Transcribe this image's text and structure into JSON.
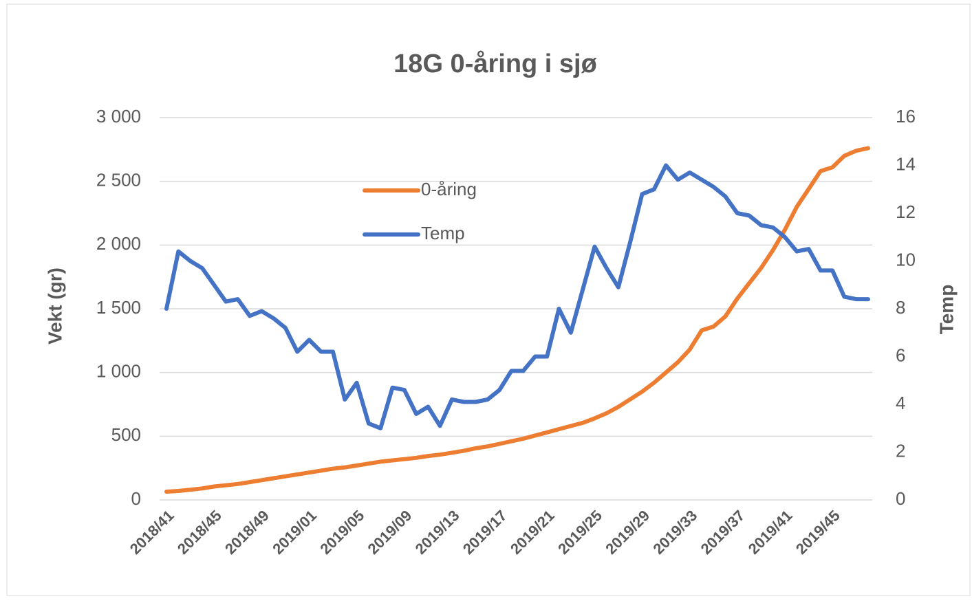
{
  "chart_data": {
    "type": "line",
    "title": "18G 0-åring i sjø",
    "y_label": "Vekt (gr)",
    "y2_label": "Temp",
    "categories": [
      "2018/41",
      null,
      null,
      null,
      "2018/45",
      null,
      null,
      null,
      "2018/49",
      null,
      null,
      null,
      "2019/01",
      null,
      null,
      null,
      "2019/05",
      null,
      null,
      null,
      "2019/09",
      null,
      null,
      null,
      "2019/13",
      null,
      null,
      null,
      "2019/17",
      null,
      null,
      null,
      "2019/21",
      null,
      null,
      null,
      "2019/25",
      null,
      null,
      null,
      "2019/29",
      null,
      null,
      null,
      "2019/33",
      null,
      null,
      null,
      "2019/37",
      null,
      null,
      null,
      "2019/41",
      null,
      null,
      null,
      "2019/45",
      null,
      null,
      null
    ],
    "series": [
      {
        "name": "0-åring",
        "color": "#ed7d31",
        "values": [
          65,
          70,
          80,
          90,
          105,
          115,
          125,
          140,
          155,
          170,
          185,
          200,
          215,
          230,
          245,
          255,
          270,
          285,
          300,
          310,
          320,
          330,
          345,
          355,
          370,
          385,
          405,
          420,
          440,
          460,
          480,
          505,
          530,
          555,
          580,
          605,
          640,
          680,
          730,
          790,
          850,
          920,
          1000,
          1080,
          1180,
          1330,
          1360,
          1440,
          1580,
          1700,
          1820,
          1960,
          2120,
          2300,
          2440,
          2580,
          2610,
          2700,
          2740,
          2760
        ]
      },
      {
        "name": "Temp",
        "color": "#4472c4",
        "axis": "y2",
        "values": [
          8.0,
          10.4,
          10.0,
          9.7,
          9.0,
          8.3,
          8.4,
          7.7,
          7.9,
          7.6,
          7.2,
          6.2,
          6.7,
          6.2,
          6.2,
          4.2,
          4.9,
          3.2,
          3.0,
          4.7,
          4.6,
          3.6,
          3.9,
          3.1,
          4.2,
          4.1,
          4.1,
          4.2,
          4.6,
          5.4,
          5.4,
          6.0,
          6.0,
          8.0,
          7.0,
          8.8,
          10.6,
          9.7,
          8.9,
          10.8,
          12.8,
          13.0,
          14.0,
          13.4,
          13.7,
          13.4,
          13.1,
          12.7,
          12.0,
          11.9,
          11.5,
          11.4,
          11.0,
          10.4,
          10.5,
          9.6,
          9.6,
          8.5,
          8.4,
          8.4
        ]
      }
    ],
    "ylim": [
      0,
      3000
    ],
    "yticks": [
      0,
      500,
      {
        "value": 1000,
        "label": "1 000"
      },
      {
        "value": 1500,
        "label": "1 500"
      },
      {
        "value": 2000,
        "label": "2 000"
      },
      {
        "value": 2500,
        "label": "2 500"
      },
      {
        "value": 3000,
        "label": "3 000"
      }
    ],
    "y2lim": [
      0,
      16
    ],
    "y2ticks": [
      0,
      2,
      4,
      6,
      8,
      10,
      12,
      14,
      16
    ],
    "grid": true
  }
}
